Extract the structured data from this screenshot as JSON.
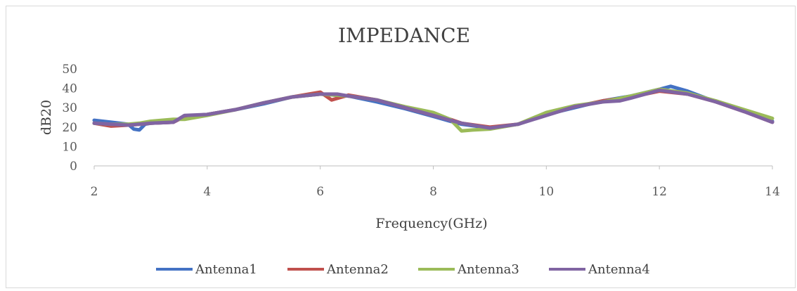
{
  "chart_data": {
    "type": "line",
    "title": "IMPEDANCE",
    "xlabel": "Frequency(GHz)",
    "ylabel": "dB20",
    "xlim": [
      2,
      14
    ],
    "ylim": [
      0,
      50
    ],
    "xticks": [
      2,
      4,
      6,
      8,
      10,
      12,
      14
    ],
    "yticks": [
      0,
      10,
      20,
      30,
      40,
      50
    ],
    "grid": false,
    "legend_position": "bottom",
    "series": [
      {
        "name": "Antenna1",
        "color": "#4472c4",
        "x": [
          2,
          2.3,
          2.6,
          2.7,
          2.8,
          2.9,
          3,
          3.4,
          3.6,
          4,
          4.5,
          5,
          5.5,
          6,
          6.5,
          7,
          7.5,
          8,
          8.3,
          8.5,
          9,
          9.5,
          10,
          10.5,
          11,
          11.5,
          12,
          12.2,
          12.5,
          13,
          13.5,
          14
        ],
        "y": [
          23.5,
          22.5,
          21.5,
          19,
          18.5,
          21.5,
          22,
          22.5,
          25.5,
          26.5,
          29,
          32,
          35.5,
          37,
          36,
          33,
          29.5,
          25.5,
          23,
          21.5,
          19.5,
          21.5,
          26.5,
          30,
          33.5,
          36,
          39.5,
          41,
          38.5,
          33,
          28.5,
          23
        ]
      },
      {
        "name": "Antenna2",
        "color": "#c0504d",
        "x": [
          2,
          2.3,
          2.6,
          2.8,
          3,
          3.4,
          3.6,
          4,
          4.5,
          5,
          5.5,
          5.8,
          6.0,
          6.1,
          6.2,
          6.5,
          7,
          7.5,
          8,
          8.3,
          8.5,
          9,
          9.5,
          10,
          10.5,
          11,
          11.5,
          12,
          12.5,
          13,
          13.5,
          14
        ],
        "y": [
          22,
          20.5,
          21,
          21.5,
          22,
          22.5,
          25.5,
          26.5,
          29,
          32.5,
          35.5,
          37,
          38,
          36,
          34,
          36.5,
          34,
          30,
          26,
          24,
          22,
          20,
          21.5,
          27,
          30.5,
          33.5,
          35.5,
          38.5,
          37,
          33,
          28,
          22.5
        ]
      },
      {
        "name": "Antenna3",
        "color": "#9bbb59",
        "x": [
          2,
          2.3,
          2.6,
          2.8,
          3,
          3.4,
          3.6,
          4,
          4.5,
          5,
          5.5,
          6,
          6.5,
          7,
          7.5,
          8,
          8.3,
          8.5,
          8.7,
          9,
          9.5,
          10,
          10.5,
          11,
          11.5,
          12,
          12.5,
          13,
          13.5,
          14
        ],
        "y": [
          22,
          21.5,
          21.5,
          22,
          23,
          24,
          24,
          26,
          29,
          32.5,
          35.5,
          37,
          36,
          34,
          30.5,
          27.5,
          24,
          18,
          18.5,
          19,
          21.5,
          27.5,
          31,
          33,
          36,
          39.5,
          37.5,
          33.5,
          29,
          24.5
        ]
      },
      {
        "name": "Antenna4",
        "color": "#8064a2",
        "x": [
          2,
          2.3,
          2.6,
          2.8,
          3,
          3.4,
          3.6,
          4,
          4.5,
          5,
          5.5,
          6,
          6.3,
          6.5,
          7,
          7.5,
          8,
          8.3,
          8.5,
          9,
          9.5,
          10,
          10.5,
          11,
          11.3,
          11.5,
          12,
          12.5,
          13,
          13.5,
          14
        ],
        "y": [
          22,
          21.5,
          21,
          21.5,
          22,
          22.5,
          26,
          26.5,
          29,
          32.5,
          35.5,
          37,
          37,
          36,
          34,
          30,
          26,
          23.5,
          22,
          19.5,
          21.5,
          26,
          30.5,
          33,
          33.5,
          35,
          39,
          37,
          33,
          28,
          22.5
        ]
      }
    ]
  }
}
